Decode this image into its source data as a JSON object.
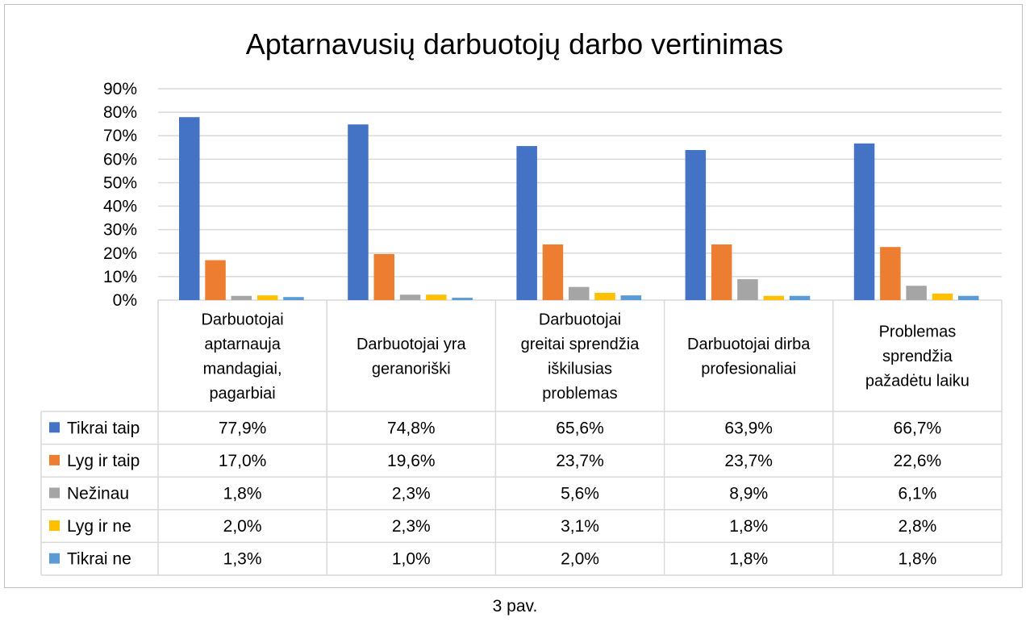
{
  "chart_data": {
    "type": "bar",
    "title": "Aptarnavusių darbuotojų darbo vertinimas",
    "categories": [
      [
        "Darbuotojai",
        "aptarnauja",
        "mandagiai,",
        "pagarbiai"
      ],
      [
        "Darbuotojai yra",
        "geranoriški"
      ],
      [
        "Darbuotojai",
        "greitai sprendžia",
        "iškilusias",
        "problemas"
      ],
      [
        "Darbuotojai dirba",
        "profesionaliai"
      ],
      [
        "Problemas",
        "sprendžia",
        "pažadėtu laiku"
      ]
    ],
    "series": [
      {
        "name": "Tikrai taip",
        "color": "#4472C4",
        "values": [
          77.9,
          74.8,
          65.6,
          63.9,
          66.7
        ],
        "labels": [
          "77,9%",
          "74,8%",
          "65,6%",
          "63,9%",
          "66,7%"
        ]
      },
      {
        "name": "Lyg ir taip",
        "color": "#ED7D31",
        "values": [
          17.0,
          19.6,
          23.7,
          23.7,
          22.6
        ],
        "labels": [
          "17,0%",
          "19,6%",
          "23,7%",
          "23,7%",
          "22,6%"
        ]
      },
      {
        "name": "Nežinau",
        "color": "#A5A5A5",
        "values": [
          1.8,
          2.3,
          5.6,
          8.9,
          6.1
        ],
        "labels": [
          "1,8%",
          "2,3%",
          "5,6%",
          "8,9%",
          "6,1%"
        ]
      },
      {
        "name": "Lyg ir ne",
        "color": "#FFC000",
        "values": [
          2.0,
          2.3,
          3.1,
          1.8,
          2.8
        ],
        "labels": [
          "2,0%",
          "2,3%",
          "3,1%",
          "1,8%",
          "2,8%"
        ]
      },
      {
        "name": "Tikrai ne",
        "color": "#5B9BD5",
        "values": [
          1.3,
          1.0,
          2.0,
          1.8,
          1.8
        ],
        "labels": [
          "1,3%",
          "1,0%",
          "2,0%",
          "1,8%",
          "1,8%"
        ]
      }
    ],
    "ylim": [
      0,
      90
    ],
    "yticks": [
      "0%",
      "10%",
      "20%",
      "30%",
      "40%",
      "50%",
      "60%",
      "70%",
      "80%",
      "90%"
    ],
    "grid": true,
    "legend": "data-table"
  },
  "caption": "3 pav."
}
